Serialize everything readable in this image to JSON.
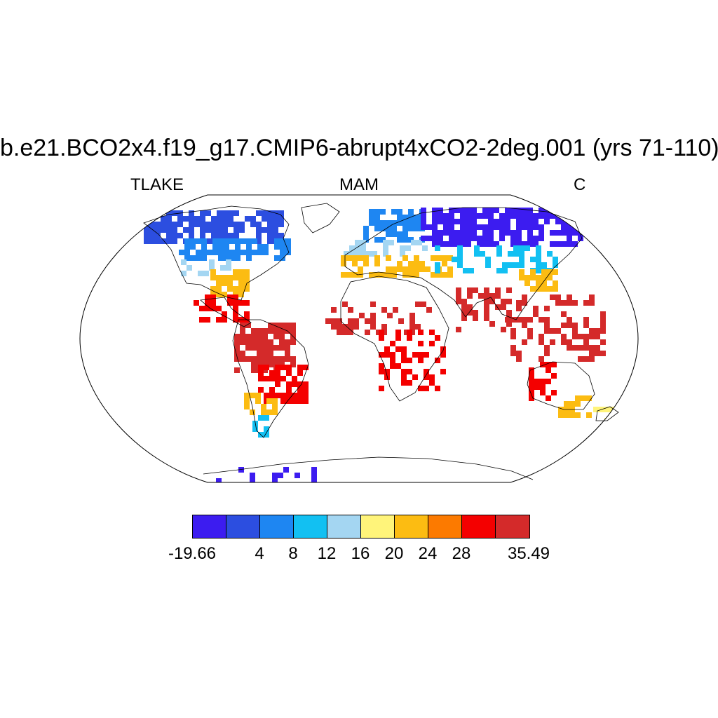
{
  "title": "b.e21.BCO2x4.f19_g17.CMIP6-abrupt4xCO2-2deg.001 (yrs 71-110)",
  "subtitle_left": "TLAKE",
  "subtitle_center": "MAM",
  "subtitle_right": "C",
  "colorbar": {
    "colors": [
      "#3c1cf0",
      "#2c4ee0",
      "#1e86f2",
      "#12c0f2",
      "#a4d6f2",
      "#fff47a",
      "#fcbc12",
      "#fc7a00",
      "#f40000",
      "#d42a2a"
    ],
    "labels": [
      {
        "text": "-19.66",
        "edge": 0
      },
      {
        "text": "4",
        "edge": 2
      },
      {
        "text": "8",
        "edge": 3
      },
      {
        "text": "12",
        "edge": 4
      },
      {
        "text": "16",
        "edge": 5
      },
      {
        "text": "20",
        "edge": 6
      },
      {
        "text": "24",
        "edge": 7
      },
      {
        "text": "28",
        "edge": 8
      },
      {
        "text": "35.49",
        "edge": 10
      }
    ]
  },
  "map": {
    "projection": "Robinson",
    "field": "TLAKE",
    "regions": [
      {
        "name": "canada-arctic",
        "color_index": 1
      },
      {
        "name": "canada-south",
        "color_index": 2
      },
      {
        "name": "usa-north",
        "color_index": 4
      },
      {
        "name": "usa-south",
        "color_index": 6
      },
      {
        "name": "central-america",
        "color_index": 8
      },
      {
        "name": "amazon",
        "color_index": 9
      },
      {
        "name": "brazil-south",
        "color_index": 8
      },
      {
        "name": "argentina",
        "color_index": 6
      },
      {
        "name": "patagonia",
        "color_index": 3
      },
      {
        "name": "scandinavia",
        "color_index": 2
      },
      {
        "name": "europe-central",
        "color_index": 4
      },
      {
        "name": "mediterranean",
        "color_index": 6
      },
      {
        "name": "siberia",
        "color_index": 0
      },
      {
        "name": "central-asia",
        "color_index": 3
      },
      {
        "name": "china",
        "color_index": 6
      },
      {
        "name": "africa-sahel",
        "color_index": 9
      },
      {
        "name": "africa-central",
        "color_index": 8
      },
      {
        "name": "india",
        "color_index": 9
      },
      {
        "name": "southeast-asia",
        "color_index": 9
      },
      {
        "name": "australia-southwest",
        "color_index": 8
      },
      {
        "name": "australia-southeast",
        "color_index": 6
      },
      {
        "name": "new-zealand",
        "color_index": 5
      },
      {
        "name": "antarctica",
        "color_index": 0
      }
    ]
  }
}
